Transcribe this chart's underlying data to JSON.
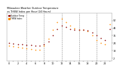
{
  "title_line1": "Milwaukee Weather Outdoor Temperature",
  "title_line2": "vs THSW Index per Hour (24 Hours)",
  "hours": [
    0,
    1,
    2,
    3,
    4,
    5,
    6,
    7,
    8,
    9,
    10,
    11,
    12,
    13,
    14,
    15,
    16,
    17,
    18,
    19,
    20,
    21,
    22,
    23
  ],
  "temp_values": [
    24,
    23,
    22,
    22,
    21,
    21,
    20,
    20,
    22,
    26,
    36,
    45,
    50,
    48,
    45,
    44,
    44,
    44,
    43,
    40,
    36,
    31,
    28,
    45
  ],
  "thsw_values": [
    20,
    19,
    18,
    17,
    16,
    15,
    14,
    14,
    20,
    30,
    44,
    55,
    60,
    55,
    50,
    46,
    44,
    44,
    42,
    36,
    28,
    24,
    22,
    52
  ],
  "temp_color": "#8B0000",
  "thsw_color": "#FF8C00",
  "grid_color": "#888888",
  "bg_color": "#ffffff",
  "ylim_min": -2,
  "ylim_max": 68,
  "ytick_positions": [
    2,
    13,
    24,
    35,
    46,
    57
  ],
  "ytick_labels": [
    "2",
    "13",
    "24",
    "35",
    "46",
    "57"
  ],
  "xtick_positions": [
    0,
    1,
    2,
    3,
    4,
    5,
    6,
    7,
    8,
    9,
    10,
    11,
    12,
    13,
    14,
    15,
    16,
    17,
    18,
    19,
    20,
    21,
    22,
    23
  ],
  "xtick_labels": [
    "0",
    "",
    "2",
    "",
    "4",
    "",
    "6",
    "",
    "8",
    "",
    "10",
    "",
    "12",
    "",
    "14",
    "",
    "16",
    "",
    "18",
    "",
    "20",
    "",
    "22",
    ""
  ],
  "vgrid_positions": [
    4,
    8,
    12,
    16,
    20
  ],
  "marker_size": 1.2,
  "legend_temp": "Outdoor Temp",
  "legend_thsw": "THSW Index"
}
